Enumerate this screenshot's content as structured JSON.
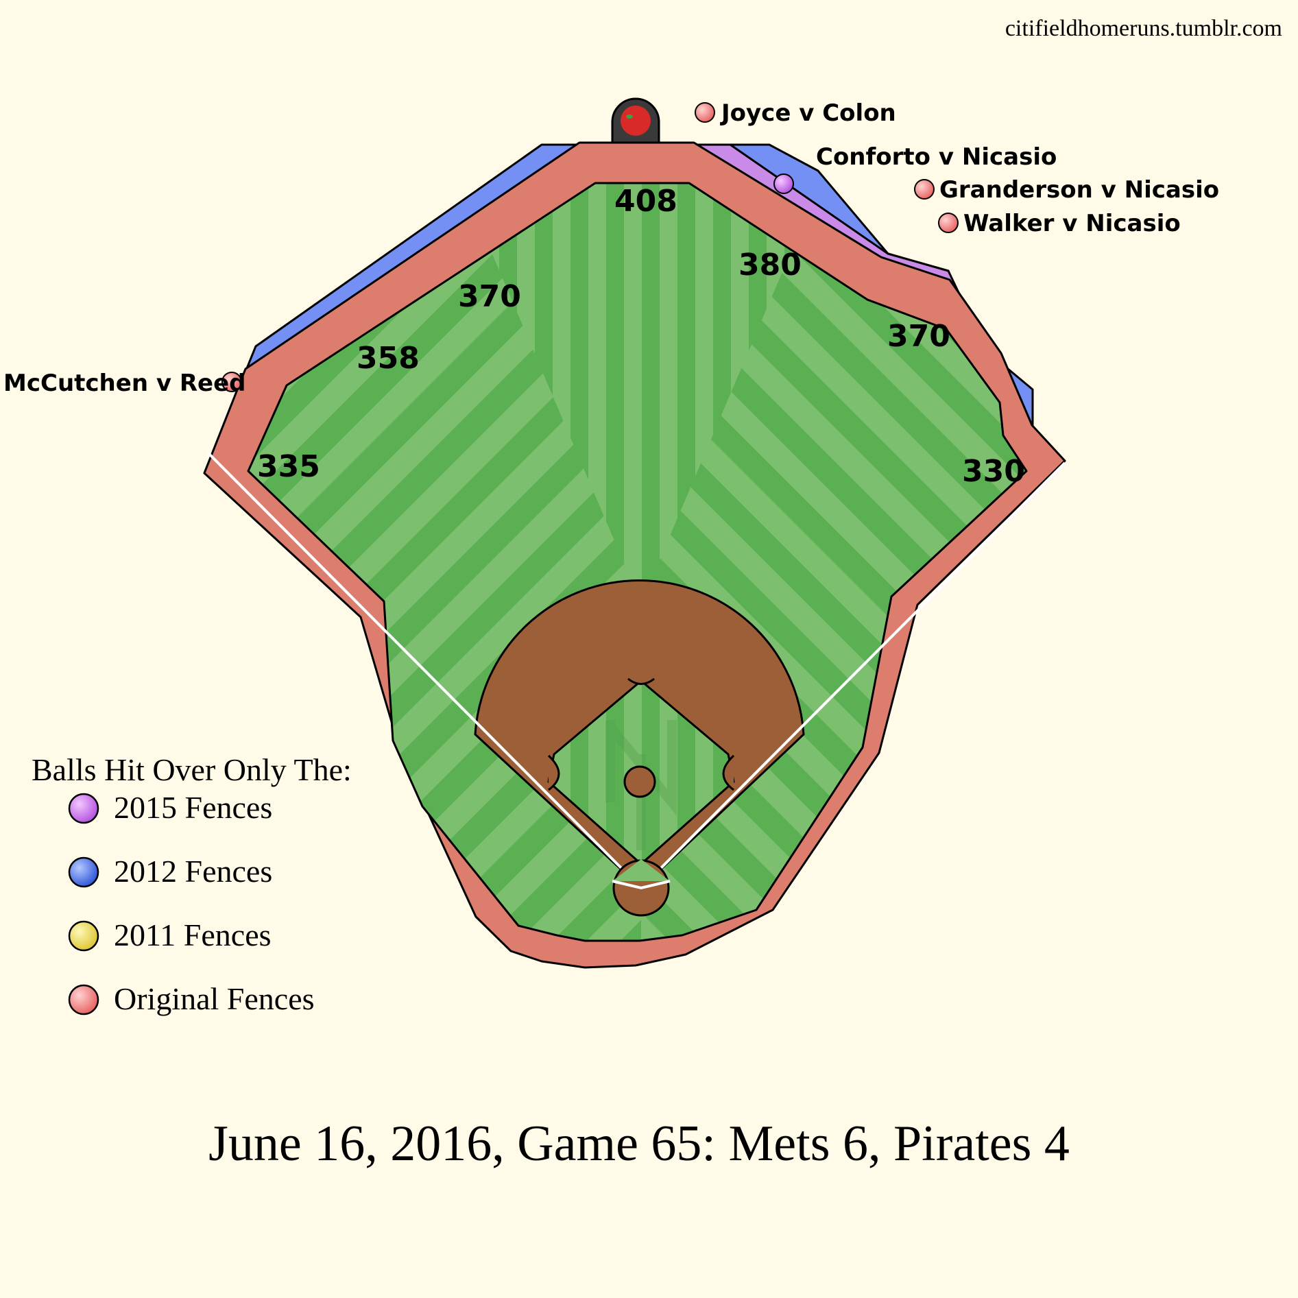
{
  "site": "citifieldhomeruns.tumblr.com",
  "title": "June 16, 2016, Game 65: Mets 6, Pirates 4",
  "distances": [
    "335",
    "358",
    "370",
    "408",
    "380",
    "370",
    "330"
  ],
  "home_runs": [
    {
      "label": "McCutchen v Reed",
      "fence": "Original Fences"
    },
    {
      "label": "Joyce v Colon",
      "fence": "Original Fences"
    },
    {
      "label": "Conforto v Nicasio",
      "fence": "2015 Fences"
    },
    {
      "label": "Granderson v Nicasio",
      "fence": "Original Fences"
    },
    {
      "label": "Walker v Nicasio",
      "fence": "Original Fences"
    }
  ],
  "legend": {
    "heading": "Balls Hit Over Only The:",
    "items": [
      {
        "label": "2015 Fences",
        "color": "#c77ce8"
      },
      {
        "label": "2012 Fences",
        "color": "#4a6ee8"
      },
      {
        "label": "2011 Fences",
        "color": "#e8d84a"
      },
      {
        "label": "Original Fences",
        "color": "#f07a78"
      }
    ]
  },
  "colors": {
    "background": "#fffbe8",
    "grass_light": "#7cbf6e",
    "grass_dark": "#5bb054",
    "warning_track": "#dc7d6d",
    "fence_2012": "#7490f5",
    "fence_2015": "#c98ae8",
    "infield_dirt": "#9c5f37"
  }
}
